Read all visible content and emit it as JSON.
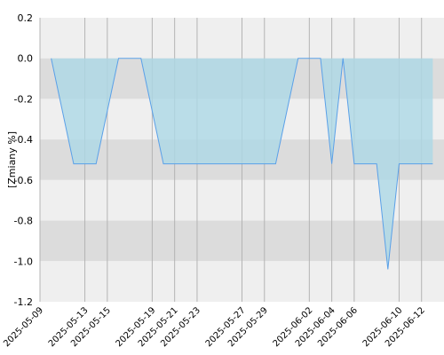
{
  "chart_data": {
    "type": "area",
    "ylabel": "[Zmiany %]",
    "xlabel": "",
    "title": "",
    "ylim": [
      -1.2,
      0.2
    ],
    "yticks": [
      0.2,
      0.0,
      -0.2,
      -0.4,
      -0.6,
      -0.8,
      -1.0,
      -1.2
    ],
    "ytick_labels": [
      "0.2",
      "0.0",
      "-0.2",
      "-0.4",
      "-0.6",
      "-0.8",
      "-1.0",
      "-1.2"
    ],
    "xlim": [
      "2025-05-09",
      "2025-06-14"
    ],
    "xticks": [
      "2025-05-09",
      "2025-05-13",
      "2025-05-15",
      "2025-05-19",
      "2025-05-21",
      "2025-05-23",
      "2025-05-27",
      "2025-05-29",
      "2025-06-02",
      "2025-06-04",
      "2025-06-06",
      "2025-06-10",
      "2025-06-12"
    ],
    "grid": true,
    "colors": {
      "fill": "#add8e6",
      "line": "#5aa0e8",
      "band_light": "#efefef",
      "band_dark": "#dcdcdc",
      "grid": "#b4b4b4"
    },
    "series": [
      {
        "x": [
          "2025-05-10",
          "2025-05-12",
          "2025-05-13",
          "2025-05-14",
          "2025-05-16",
          "2025-05-17",
          "2025-05-18",
          "2025-05-20",
          "2025-05-21",
          "2025-05-22",
          "2025-05-23",
          "2025-05-24",
          "2025-05-25",
          "2025-05-26",
          "2025-05-27",
          "2025-05-28",
          "2025-05-29",
          "2025-05-30",
          "2025-06-01",
          "2025-06-02",
          "2025-06-03",
          "2025-06-04",
          "2025-06-05",
          "2025-06-06",
          "2025-06-07",
          "2025-06-08",
          "2025-06-09",
          "2025-06-10",
          "2025-06-11",
          "2025-06-12",
          "2025-06-13"
        ],
        "values": [
          0.0,
          -0.52,
          -0.52,
          -0.52,
          0.0,
          0.0,
          0.0,
          -0.52,
          -0.52,
          -0.52,
          -0.52,
          -0.52,
          -0.52,
          -0.52,
          -0.52,
          -0.52,
          -0.52,
          -0.52,
          0.0,
          0.0,
          0.0,
          -0.52,
          0.0,
          -0.52,
          -0.52,
          -0.52,
          -1.04,
          -0.52,
          -0.52,
          -0.52,
          -0.52
        ]
      }
    ]
  }
}
